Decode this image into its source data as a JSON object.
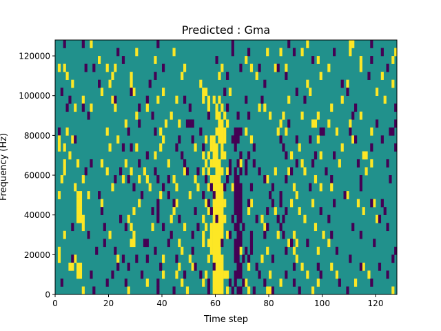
{
  "chart_data": {
    "type": "heatmap",
    "title": "Predicted : Gma",
    "xlabel": "Time step",
    "ylabel": "Frequency (Hz)",
    "xlim": [
      0,
      128
    ],
    "ylim": [
      0,
      128000
    ],
    "n_cols": 128,
    "n_rows": 32,
    "xticks": [
      0,
      20,
      40,
      60,
      80,
      100,
      120
    ],
    "xtick_labels": [
      "0",
      "20",
      "40",
      "60",
      "80",
      "100",
      "120"
    ],
    "yticks": [
      0,
      20000,
      40000,
      60000,
      80000,
      100000,
      120000
    ],
    "ytick_labels": [
      "0",
      "20000",
      "40000",
      "60000",
      "80000",
      "100000",
      "120000"
    ],
    "colors": {
      "background": "#21918c",
      "high": "#fde725",
      "low": "#440154"
    },
    "cells_note_order": "rows listed top (highest frequency) to bottom",
    "rows": [
      {
        "y": [
          13,
          94,
          110,
          111
        ],
        "p": [
          3,
          10,
          38,
          66,
          87,
          118
        ]
      },
      {
        "y": [
          30,
          44,
          79,
          84,
          92,
          110,
          127
        ],
        "p": [
          23,
          66,
          72,
          89,
          104,
          122
        ]
      },
      {
        "y": [
          16,
          37,
          71,
          98,
          114,
          126
        ],
        "p": [
          25,
          60,
          96,
          118
        ]
      },
      {
        "y": [
          1,
          3,
          19,
          22,
          48,
          62,
          73,
          82,
          86,
          102,
          114
        ],
        "p": [
          11,
          14,
          40,
          69,
          76,
          83,
          124
        ]
      },
      {
        "y": [
          4,
          21,
          28,
          47,
          61,
          75,
          99,
          122
        ],
        "p": [
          37,
          64,
          86,
          117
        ]
      },
      {
        "y": [
          6,
          20,
          28,
          54,
          94,
          109,
          126
        ],
        "p": [
          16,
          35,
          78,
          107
        ]
      },
      {
        "y": [
          17,
          29,
          40,
          55,
          56,
          65,
          95,
          120
        ],
        "p": [
          2,
          28,
          63,
          90,
          109
        ]
      },
      {
        "y": [
          10,
          21,
          38,
          45,
          55,
          57,
          59,
          61,
          87,
          107,
          123
        ],
        "p": [
          5,
          22,
          34,
          48,
          71,
          77,
          93
        ]
      },
      {
        "y": [
          7,
          13,
          22,
          34,
          57,
          60,
          62,
          76,
          78,
          103
        ],
        "p": [
          4,
          10,
          31,
          50,
          64,
          112,
          127
        ]
      },
      {
        "y": [
          30,
          43,
          60,
          61,
          63,
          80,
          85,
          92,
          98,
          114
        ],
        "p": [
          12,
          36,
          57,
          68,
          72,
          111
        ]
      },
      {
        "y": [
          26,
          41,
          46,
          61,
          62,
          64,
          84,
          96,
          97,
          102,
          110
        ],
        "p": [
          31,
          49,
          50,
          51,
          87,
          120,
          127
        ]
      },
      {
        "y": [
          4,
          19,
          39,
          60,
          61,
          62,
          63,
          71,
          83,
          86,
          105,
          118
        ],
        "p": [
          1,
          27,
          37,
          54,
          67,
          68,
          69,
          99,
          100,
          110,
          125,
          126
        ]
      },
      {
        "y": [
          1,
          6,
          23,
          40,
          56,
          58,
          59,
          61,
          62,
          63,
          73,
          98,
          111
        ],
        "p": [
          7,
          46,
          51,
          66,
          67,
          68,
          84,
          90,
          95,
          112,
          122
        ]
      },
      {
        "y": [
          1,
          3,
          20,
          30,
          39,
          52,
          58,
          59,
          60,
          62,
          91,
          107
        ],
        "p": [
          25,
          28,
          45,
          55,
          67,
          74,
          85,
          118,
          127
        ]
      },
      {
        "y": [
          5,
          37,
          55,
          57,
          59,
          60,
          62,
          63,
          88,
          99,
          115,
          116
        ],
        "p": [
          34,
          47,
          69,
          72,
          86,
          97,
          104
        ]
      },
      {
        "y": [
          3,
          8,
          17,
          26,
          42,
          56,
          58,
          59,
          60,
          61,
          69,
          92,
          106,
          118
        ],
        "p": [
          13,
          31,
          48,
          65,
          68,
          71,
          74,
          90,
          96,
          113,
          124
        ]
      },
      {
        "y": [
          3,
          19,
          28,
          33,
          48,
          55,
          57,
          60,
          61,
          62,
          64,
          82,
          87,
          93,
          116
        ],
        "p": [
          11,
          24,
          37,
          49,
          53,
          65,
          67,
          69,
          71,
          76,
          88,
          101
        ]
      },
      {
        "y": [
          2,
          10,
          25,
          31,
          34,
          44,
          52,
          58,
          59,
          60,
          61,
          79,
          97
        ],
        "p": [
          22,
          27,
          38,
          42,
          56,
          64,
          67,
          68,
          78,
          86,
          103,
          114,
          125
        ]
      },
      {
        "y": [
          7,
          21,
          35,
          45,
          53,
          57,
          59,
          60,
          61,
          62,
          66,
          89,
          99,
          103
        ],
        "p": [
          29,
          40,
          58,
          63,
          67,
          68,
          69,
          73,
          81,
          95,
          114
        ]
      },
      {
        "y": [
          1,
          8,
          9,
          12,
          39,
          50,
          59,
          60,
          61,
          62,
          90,
          109
        ],
        "p": [
          16,
          32,
          42,
          55,
          59,
          67,
          68,
          69,
          80,
          84,
          108
        ]
      },
      {
        "y": [
          8,
          9,
          17,
          31,
          45,
          56,
          59,
          60,
          61,
          62,
          63,
          73,
          88,
          96,
          113,
          119
        ],
        "p": [
          38,
          44,
          57,
          67,
          68,
          69,
          72,
          81,
          84,
          104,
          118,
          122
        ]
      },
      {
        "y": [
          8,
          9,
          29,
          44,
          57,
          59,
          60,
          61,
          62,
          72,
          82,
          91,
          115
        ],
        "p": [
          17,
          36,
          38,
          52,
          58,
          67,
          68,
          69,
          79,
          86,
          99,
          123
        ]
      },
      {
        "y": [
          8,
          9,
          10,
          27,
          43,
          55,
          59,
          61,
          62,
          63,
          77,
          93,
          120
        ],
        "p": [
          24,
          38,
          46,
          60,
          66,
          68,
          69,
          75,
          83,
          85,
          102,
          121
        ]
      },
      {
        "y": [
          10,
          28,
          36,
          48,
          56,
          58,
          59,
          60,
          61,
          62,
          78,
          97
        ],
        "p": [
          6,
          18,
          26,
          40,
          53,
          67,
          68,
          70,
          79,
          84,
          111,
          124
        ]
      },
      {
        "y": [
          3,
          12,
          20,
          29,
          55,
          58,
          59,
          60,
          61,
          62,
          64,
          83,
          89,
          100
        ],
        "p": [
          12,
          43,
          51,
          65,
          68,
          69,
          73,
          78,
          85,
          103,
          114
        ]
      },
      {
        "y": [
          28,
          29,
          46,
          55,
          57,
          58,
          59,
          60,
          61,
          87,
          90,
          102
        ],
        "p": [
          18,
          33,
          34,
          42,
          62,
          67,
          68,
          69,
          73,
          88,
          94,
          119
        ]
      },
      {
        "y": [
          1,
          47,
          58,
          59,
          60,
          61,
          69,
          79,
          89,
          98
        ],
        "p": [
          15,
          22,
          37,
          51,
          67,
          68,
          71,
          73,
          86,
          105,
          127
        ]
      },
      {
        "y": [
          1,
          7,
          23,
          40,
          50,
          57,
          59,
          60,
          61,
          62,
          77,
          90
        ],
        "p": [
          6,
          25,
          30,
          34,
          45,
          67,
          68,
          70,
          72,
          81,
          110,
          126
        ]
      },
      {
        "y": [
          5,
          6,
          8,
          9,
          46,
          51,
          60,
          61,
          62,
          72,
          92,
          103,
          115
        ],
        "p": [
          23,
          27,
          39,
          52,
          59,
          68,
          69,
          75,
          89,
          98,
          114,
          121
        ]
      },
      {
        "y": [
          8,
          9,
          40,
          45,
          56,
          59,
          60,
          61,
          62,
          63,
          64,
          80,
          94,
          105,
          117
        ],
        "p": [
          13,
          21,
          32,
          48,
          54,
          67,
          68,
          69,
          76,
          86,
          99,
          124
        ]
      },
      {
        "y": [
          34,
          47,
          55,
          59,
          60,
          61,
          62,
          71,
          84,
          98,
          112
        ],
        "p": [
          2,
          19,
          26,
          38,
          57,
          65,
          67,
          70,
          78,
          89,
          106,
          118
        ]
      },
      {
        "y": [
          10,
          27,
          49,
          59,
          60,
          61,
          62,
          64,
          72,
          79,
          80,
          96,
          126
        ],
        "p": [
          14,
          38,
          44,
          57,
          66,
          68,
          69,
          74,
          81,
          91,
          109
        ]
      }
    ]
  }
}
